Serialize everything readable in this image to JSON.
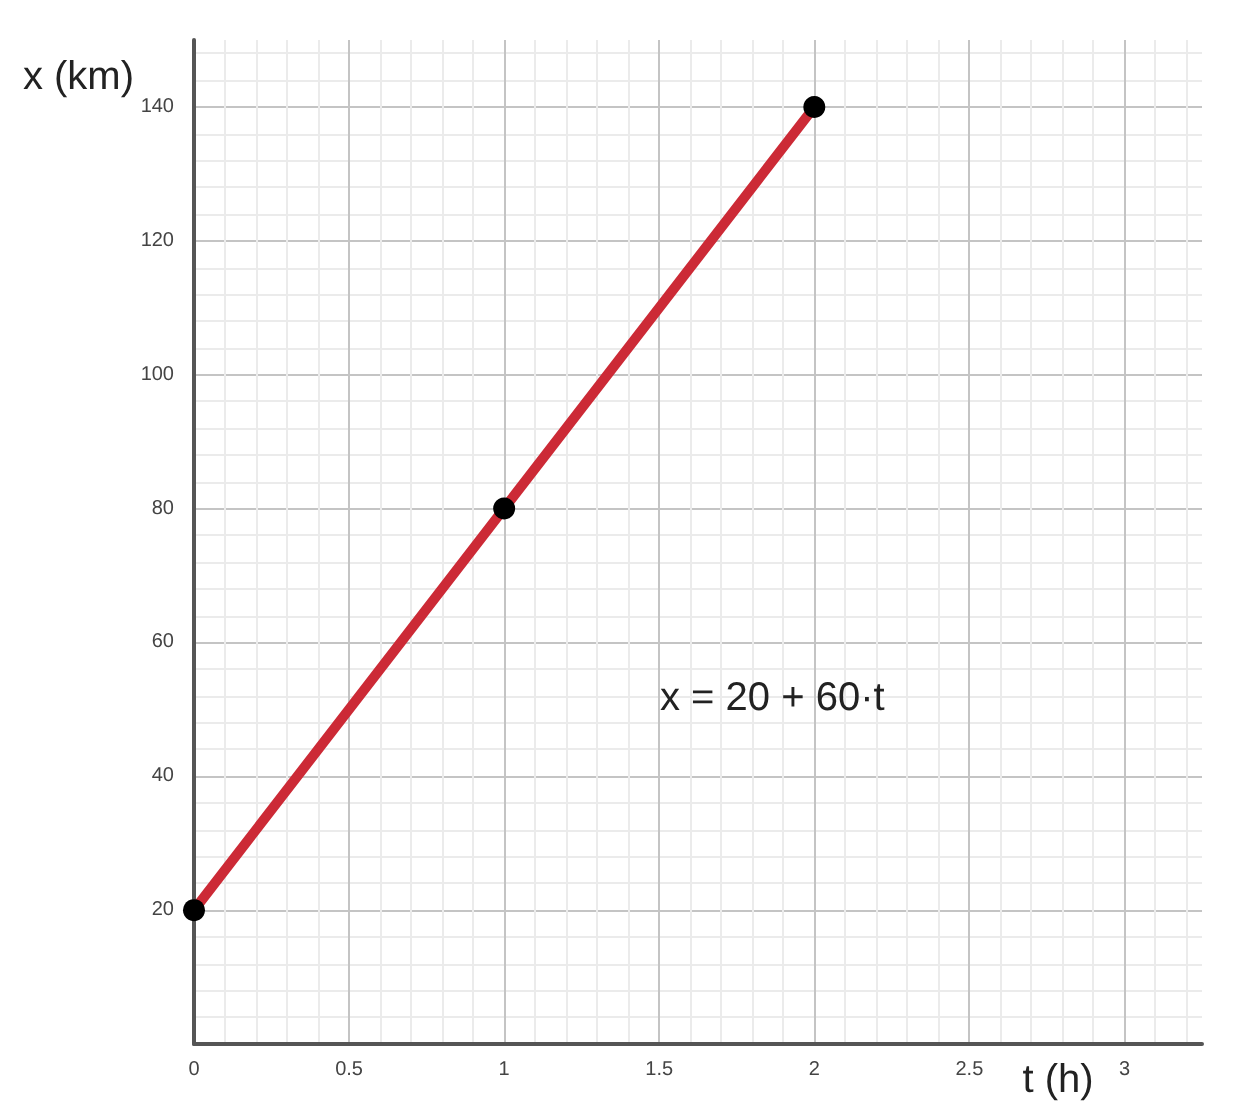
{
  "chart_data": {
    "type": "line",
    "xlabel": "t (h)",
    "ylabel": "x (km)",
    "annotations": [
      "x = 20 + 60·t"
    ],
    "xlim": [
      0,
      3.25
    ],
    "xticks": [
      0,
      0.5,
      1,
      1.5,
      2,
      2.5,
      3
    ],
    "ylim": [
      0,
      150
    ],
    "yticks": [
      20,
      40,
      60,
      80,
      100,
      120,
      140
    ],
    "grid": true,
    "series": [
      {
        "color": "#cc2a36",
        "x": [
          0,
          1,
          2
        ],
        "values": [
          20,
          80,
          140
        ],
        "marker": "none"
      },
      {
        "type": "scatter",
        "color": "#000000",
        "x": [
          0,
          1,
          2
        ],
        "values": [
          20,
          80,
          140
        ],
        "marker": "circle"
      }
    ]
  }
}
